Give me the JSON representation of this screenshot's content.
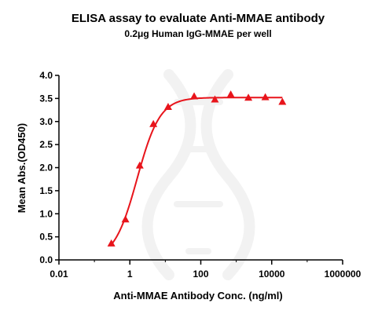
{
  "chart_data": {
    "type": "scatter",
    "title": "ELISA assay to evaluate Anti-MMAE antibody",
    "subtitle": "0.2μg Human IgG-MMAE per well",
    "xlabel": "Anti-MMAE Antibody Conc. (ng/ml)",
    "ylabel": "Mean Abs.(OD450)",
    "x_scale": "log",
    "xlim": [
      0.01,
      1000000
    ],
    "ylim": [
      0,
      4.0
    ],
    "x_ticks": [
      0.01,
      1,
      100,
      10000,
      1000000
    ],
    "x_tick_labels": [
      "0.01",
      "1",
      "100",
      "10000",
      "1000000"
    ],
    "y_ticks": [
      0,
      0.5,
      1.0,
      1.5,
      2.0,
      2.5,
      3.0,
      3.5,
      4.0
    ],
    "y_tick_labels": [
      "0.0",
      "0.5",
      "1.0",
      "1.5",
      "2.0",
      "2.5",
      "3.0",
      "3.5",
      "4.0"
    ],
    "grid": false,
    "color": "#e8141b",
    "series": [
      {
        "marker": "triangle",
        "x": [
          0.3,
          0.75,
          1.9,
          4.6,
          12,
          65,
          250,
          700,
          2200,
          6600,
          20000
        ],
        "y": [
          0.36,
          0.88,
          2.05,
          2.95,
          3.32,
          3.55,
          3.48,
          3.59,
          3.52,
          3.53,
          3.43
        ]
      }
    ],
    "fit_curve": {
      "model": "4PL",
      "bottom": 0.0,
      "top": 3.52,
      "ec50": 1.6,
      "hill": 1.35
    }
  }
}
